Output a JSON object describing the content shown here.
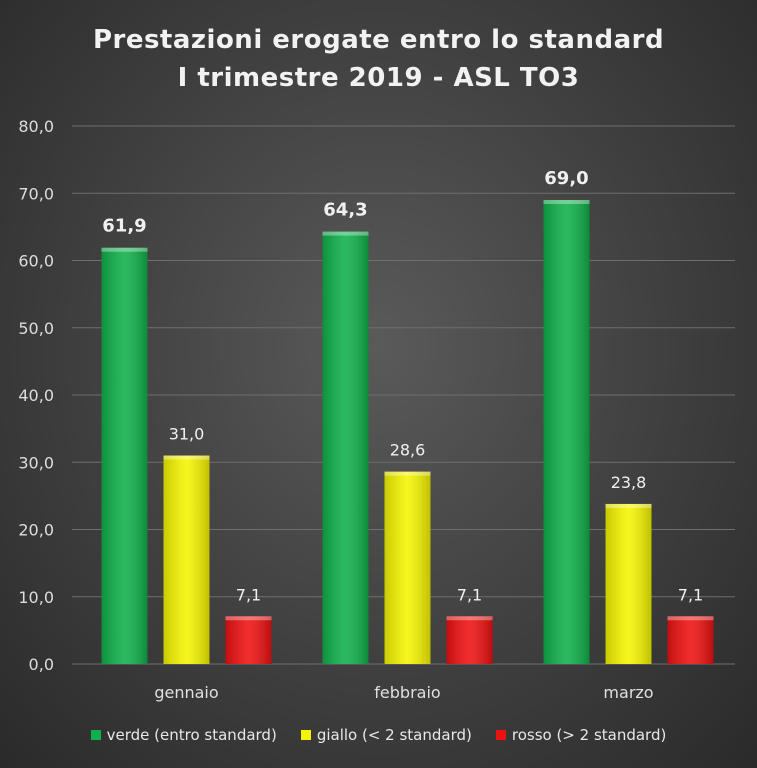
{
  "chart_data": {
    "type": "bar",
    "title_lines": [
      "Prestazioni erogate entro lo standard",
      "I trimestre 2019 - ASL TO3"
    ],
    "categories": [
      "gennaio",
      "febbraio",
      "marzo"
    ],
    "series": [
      {
        "name": "verde (entro standard)",
        "color": "#10b04a",
        "values": [
          61.9,
          64.3,
          69.0
        ],
        "labels": [
          "61,9",
          "64,3",
          "69,0"
        ],
        "label_bold": true
      },
      {
        "name": "giallo (< 2 standard)",
        "color": "#f5f500",
        "values": [
          31.0,
          28.6,
          23.8
        ],
        "labels": [
          "31,0",
          "28,6",
          "23,8"
        ],
        "label_bold": false
      },
      {
        "name": "rosso (> 2 standard)",
        "color": "#ee1111",
        "values": [
          7.1,
          7.1,
          7.1
        ],
        "labels": [
          "7,1",
          "7,1",
          "7,1"
        ],
        "label_bold": false
      }
    ],
    "ylim": [
      0,
      80
    ],
    "yticks": [
      0,
      10,
      20,
      30,
      40,
      50,
      60,
      70,
      80
    ],
    "ytick_labels": [
      "0,0",
      "10,0",
      "20,0",
      "30,0",
      "40,0",
      "50,0",
      "60,0",
      "70,0",
      "80,0"
    ],
    "grid": true,
    "legend_position": "bottom"
  }
}
